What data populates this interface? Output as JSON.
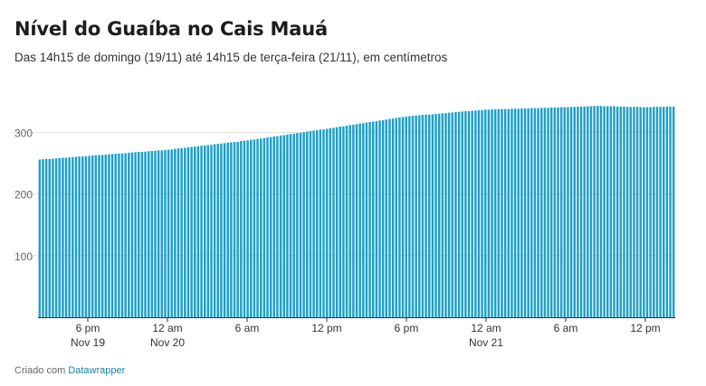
{
  "header": {
    "title": "Nível do Guaíba no Cais Mauá",
    "subtitle": "Das 14h15 de domingo (19/11) até 14h15 de terça-feira (21/11), em centímetros"
  },
  "footer": {
    "prefix": "Criado com",
    "brand": "Datawrapper"
  },
  "colors": {
    "bar": "#1f9fc6",
    "grid": "#e2e2e2",
    "axis": "#333333"
  },
  "chart_data": {
    "type": "bar",
    "title": "Nível do Guaíba no Cais Mauá",
    "subtitle": "Das 14h15 de domingo (19/11) até 14h15 de terça-feira (21/11), em centímetros",
    "x_start": "2023-11-19T14:15",
    "x_end": "2023-11-21T14:15",
    "interval_minutes": 15,
    "ylim": [
      0,
      380
    ],
    "y_ticks": [
      100,
      200,
      300
    ],
    "x_ticks": [
      {
        "time": "2023-11-19T18:00",
        "label": "6 pm",
        "sublabel": "Nov 19"
      },
      {
        "time": "2023-11-20T00:00",
        "label": "12 am",
        "sublabel": "Nov 20"
      },
      {
        "time": "2023-11-20T06:00",
        "label": "6 am",
        "sublabel": ""
      },
      {
        "time": "2023-11-20T12:00",
        "label": "12 pm",
        "sublabel": ""
      },
      {
        "time": "2023-11-20T18:00",
        "label": "6 pm",
        "sublabel": ""
      },
      {
        "time": "2023-11-21T00:00",
        "label": "12 am",
        "sublabel": "Nov 21"
      },
      {
        "time": "2023-11-21T06:00",
        "label": "6 am",
        "sublabel": ""
      },
      {
        "time": "2023-11-21T12:00",
        "label": "12 pm",
        "sublabel": ""
      }
    ],
    "level_keypoints": [
      {
        "time": "2023-11-19T14:15",
        "value": 256
      },
      {
        "time": "2023-11-19T18:00",
        "value": 262
      },
      {
        "time": "2023-11-20T00:00",
        "value": 272
      },
      {
        "time": "2023-11-20T06:00",
        "value": 287
      },
      {
        "time": "2023-11-20T12:00",
        "value": 306
      },
      {
        "time": "2023-11-20T18:00",
        "value": 326
      },
      {
        "time": "2023-11-21T00:00",
        "value": 337
      },
      {
        "time": "2023-11-21T06:00",
        "value": 341
      },
      {
        "time": "2023-11-21T08:30",
        "value": 343
      },
      {
        "time": "2023-11-21T12:00",
        "value": 341
      },
      {
        "time": "2023-11-21T14:15",
        "value": 342
      }
    ]
  }
}
